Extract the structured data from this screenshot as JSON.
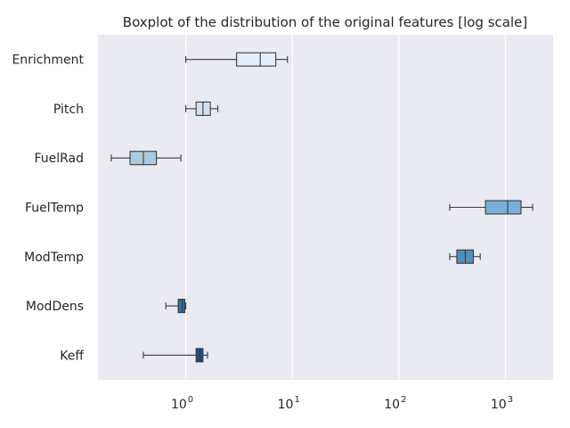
{
  "chart_data": {
    "type": "boxplot",
    "orientation": "horizontal",
    "title": "Boxplot of the distribution of the original features [log scale]",
    "x_scale": "log",
    "xlim": [
      0.15,
      2800
    ],
    "x_ticks": [
      {
        "value": 1,
        "base": "10",
        "exp": "0"
      },
      {
        "value": 10,
        "base": "10",
        "exp": "1"
      },
      {
        "value": 100,
        "base": "10",
        "exp": "2"
      },
      {
        "value": 1000,
        "base": "10",
        "exp": "3"
      }
    ],
    "grid": true,
    "background": "#eaeaf2",
    "series": [
      {
        "name": "Enrichment",
        "whisker_low": 1.0,
        "q1": 3.0,
        "median": 5.0,
        "q3": 7.0,
        "whisker_high": 9.0,
        "color": "#e4eef8"
      },
      {
        "name": "Pitch",
        "whisker_low": 1.0,
        "q1": 1.25,
        "median": 1.45,
        "q3": 1.7,
        "whisker_high": 2.0,
        "color": "#d0e1f2"
      },
      {
        "name": "FuelRad",
        "whisker_low": 0.2,
        "q1": 0.3,
        "median": 0.4,
        "q3": 0.53,
        "whisker_high": 0.9,
        "color": "#a9cce3"
      },
      {
        "name": "FuelTemp",
        "whisker_low": 300,
        "q1": 650,
        "median": 1050,
        "q3": 1400,
        "whisker_high": 1800,
        "color": "#79b0d6"
      },
      {
        "name": "ModTemp",
        "whisker_low": 300,
        "q1": 350,
        "median": 420,
        "q3": 500,
        "whisker_high": 580,
        "color": "#4f8fc0"
      },
      {
        "name": "ModDens",
        "whisker_low": 0.65,
        "q1": 0.85,
        "median": 0.93,
        "q3": 0.98,
        "whisker_high": 1.0,
        "color": "#2f6ea8"
      },
      {
        "name": "Keff",
        "whisker_low": 0.4,
        "q1": 1.25,
        "median": 1.35,
        "q3": 1.45,
        "whisker_high": 1.6,
        "color": "#1f4f8a"
      }
    ]
  }
}
